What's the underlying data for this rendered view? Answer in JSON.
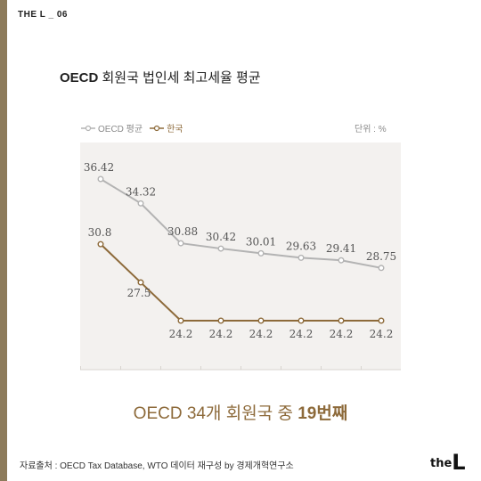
{
  "series_tag": "THE L _ 06",
  "title": {
    "highlight": "OECD",
    "rest": " 회원국 법인세 최고세율 평균"
  },
  "unit": "단위 : %",
  "subtitle": {
    "normal": "OECD 34개 회원국 중 ",
    "strong": "19번째"
  },
  "source": "자료출처 : OECD Tax Database, WTO 데이터 재구성 by 경제개혁연구소",
  "logo": {
    "small": "the",
    "big": "L"
  },
  "colors": {
    "oecd": "#b3b3b3",
    "korea": "#8d6a3a",
    "plot_bg": "#f3f1ef",
    "accent_bar": "#8d7b5b"
  },
  "chart_data": {
    "type": "line",
    "title": "OECD 회원국 법인세 최고세율 평균",
    "unit": "단위 : %",
    "x": [
      1,
      2,
      3,
      4,
      5,
      6,
      7,
      8
    ],
    "series": [
      {
        "name": "OECD 평균",
        "values": [
          36.42,
          34.32,
          30.88,
          30.42,
          30.01,
          29.63,
          29.41,
          28.75
        ]
      },
      {
        "name": "한국",
        "values": [
          30.8,
          27.5,
          24.2,
          24.2,
          24.2,
          24.2,
          24.2,
          24.2
        ]
      }
    ],
    "value_labels": {
      "oecd": [
        "36.42",
        "34.32",
        "30.88",
        "30.42",
        "30.01",
        "29.63",
        "29.41",
        "28.75"
      ],
      "korea": [
        "30.8",
        "27.5",
        "24.2",
        "24.2",
        "24.2",
        "24.2",
        "24.2",
        "24.2"
      ]
    },
    "grid": false,
    "legend": "top-left"
  }
}
